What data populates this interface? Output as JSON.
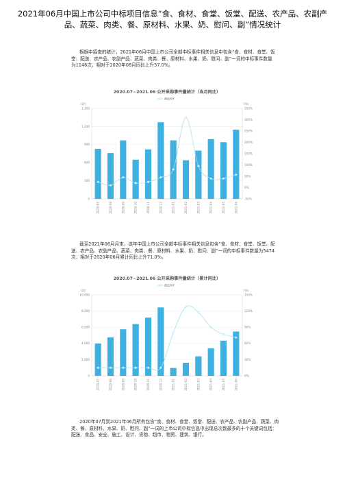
{
  "doc": {
    "title": "2021年06月中国上市公司中标项目信息“食、食材、食堂、饭堂、配送、农产品、农副产品、蔬菜、肉类、餐、原材料、水果、奶、慰问、副”情况统计",
    "para1": "根据中招查的统计，2021年06月中国上市公司全部中标事件相关信息中包含“食、食材、食堂、饭堂、配送、农产品、农副产品、蔬菜、肉类、餐、原材料、水果、奶、慰问、副”一词的中标事件数量为1146次，相对于2020年06月同比上升57.0%。",
    "para2": "截至2021年06月月末，该年中国上市公司全部中标事件相关信息包含“食、食材、食堂、饭堂、配送、农产品、农副产品、蔬菜、肉类、餐、原材料、水果、奶、慰问、副”一词的中标事件数量为5474次，相对于2020年06月累计同比上升71.0%。",
    "para3": "2020年07月到2021年06月所有包含“食、食材、食堂、饭堂、配送、农产品、农副产品、蔬菜、肉类、餐、原材料、水果、奶、慰问、副”一词的上市公司中标信息中出现总次数最多的十个关键词包括：配送、食品、安全、施工、设计、货物、超市、物资、建筑、银行。"
  },
  "chart_data": [
    {
      "type": "bar",
      "title": "2020.07~2021.06 公开采购事件量统计（当月同比）",
      "legend": "同比YoY",
      "left_unit": "(次)",
      "right_unit": "(%)",
      "categories": [
        "2020-07",
        "2020-08",
        "2020-09",
        "2020-10",
        "2020-11",
        "2020-12",
        "2021-01",
        "2021-02",
        "2021-03",
        "2021-04",
        "2021-05",
        "2021-06"
      ],
      "values": [
        830,
        760,
        970,
        650,
        820,
        1270,
        970,
        640,
        800,
        990,
        940,
        1146
      ],
      "yoy": [
        25,
        10,
        45,
        20,
        25,
        45,
        80,
        310,
        95,
        40,
        40,
        57
      ],
      "ylim": [
        0,
        1500
      ],
      "yticks": [
        0,
        300,
        600,
        900,
        1200,
        1500
      ],
      "ytick_labels": [
        "0",
        "300",
        "600",
        "900",
        "1,200",
        "1,500"
      ],
      "y2lim": [
        -50,
        350
      ],
      "y2ticks": [
        -50,
        0,
        50,
        100,
        150,
        200,
        250,
        300,
        350
      ],
      "y2tick_labels": [
        "-50%",
        "0%",
        "50%",
        "100%",
        "150%",
        "200%",
        "250%",
        "300%",
        "350%"
      ],
      "bar_color": "#3fb0e0",
      "line_color": "#a8e0f4",
      "legend_position": "top-center"
    },
    {
      "type": "bar",
      "title": "2020.07~2021.06 公开采购事件量统计（累计同比）",
      "legend": "同比YoY",
      "left_unit": "(次)",
      "right_unit": "(%)",
      "categories": [
        "2020-07",
        "2020-08",
        "2020-09",
        "2020-10",
        "2020-11",
        "2020-12",
        "2021-01",
        "2021-02",
        "2021-03",
        "2021-04",
        "2021-05",
        "2021-06"
      ],
      "values": [
        4000,
        4750,
        5750,
        6400,
        7200,
        8450,
        970,
        1610,
        2410,
        3400,
        4340,
        5474
      ],
      "yoy": [
        15,
        15,
        15,
        15,
        15,
        15,
        80,
        128,
        118,
        90,
        77,
        71
      ],
      "ylim": [
        0,
        10000
      ],
      "yticks": [
        0,
        2000,
        4000,
        6000,
        8000,
        10000
      ],
      "ytick_labels": [
        "0",
        "2,000",
        "4,000",
        "6,000",
        "8,000",
        "10,000"
      ],
      "y2lim": [
        0,
        150
      ],
      "y2ticks": [
        0,
        30,
        60,
        90,
        120,
        150
      ],
      "y2tick_labels": [
        "0%",
        "30%",
        "60%",
        "90%",
        "120%",
        "150%"
      ],
      "bar_color": "#3fb0e0",
      "line_color": "#a8e0f4",
      "legend_position": "top-center"
    }
  ]
}
